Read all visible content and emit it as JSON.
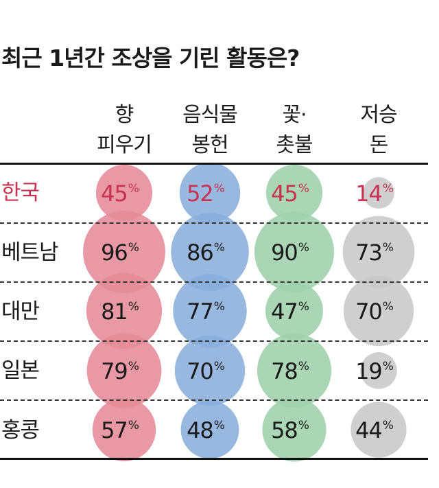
{
  "title": "최근 1년간 조상을 기린 활동은?",
  "columns": [
    {
      "line1": "향",
      "line2": "피우기",
      "color": "#e58b98"
    },
    {
      "line1": "음식물",
      "line2": "봉헌",
      "color": "#8aaedc"
    },
    {
      "line1": "꽃·",
      "line2": "촛불",
      "color": "#9fd0ac"
    },
    {
      "line1": "저승",
      "line2": "돈",
      "color": "#c8c8c8"
    }
  ],
  "highlight_color": "#c8314f",
  "percent_symbol": "%",
  "chart_data": {
    "type": "table",
    "title": "최근 1년간 조상을 기린 활동은?",
    "categories": [
      "향 피우기",
      "음식물 봉헌",
      "꽃·촛불",
      "저승돈"
    ],
    "unit": "%",
    "rows": [
      {
        "label": "한국",
        "values": [
          45,
          52,
          45,
          14
        ],
        "highlight": true
      },
      {
        "label": "베트남",
        "values": [
          96,
          86,
          90,
          73
        ],
        "highlight": false
      },
      {
        "label": "대만",
        "values": [
          81,
          77,
          47,
          70
        ],
        "highlight": false
      },
      {
        "label": "일본",
        "values": [
          79,
          70,
          78,
          19
        ],
        "highlight": false
      },
      {
        "label": "홍콩",
        "values": [
          57,
          48,
          58,
          44
        ],
        "highlight": false
      }
    ]
  }
}
